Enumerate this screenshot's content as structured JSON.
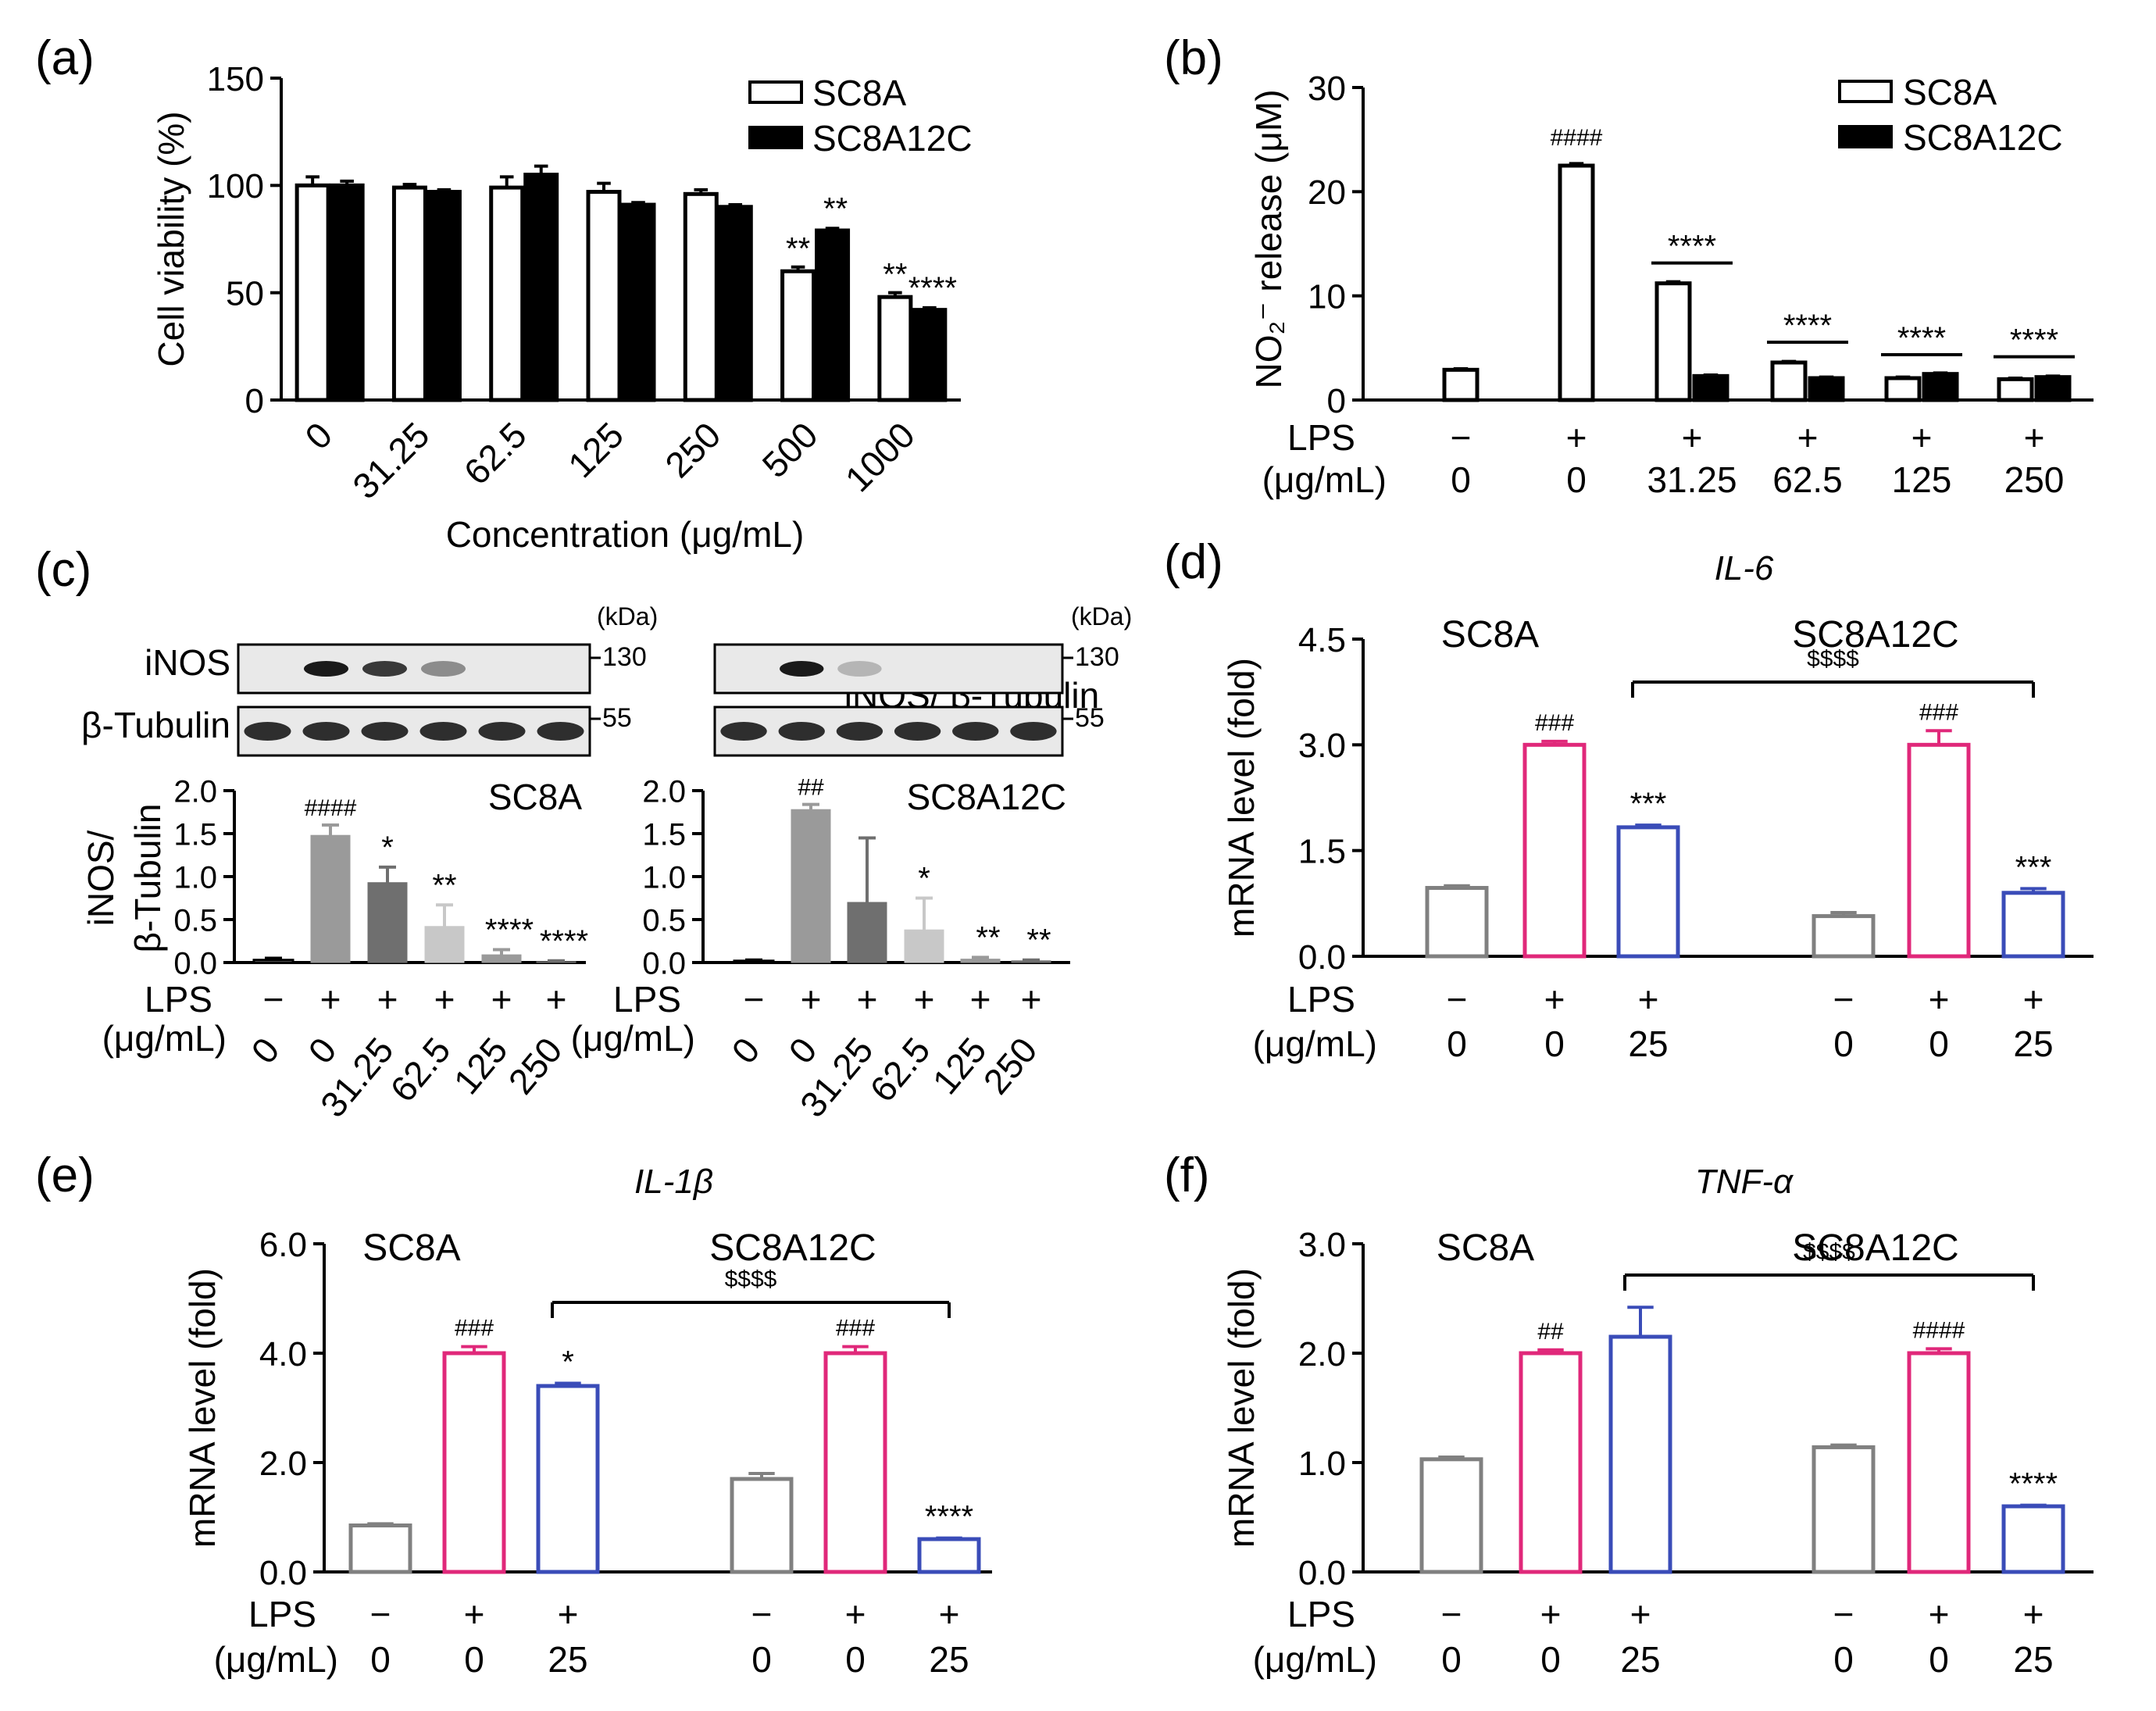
{
  "palette": {
    "black": "#000000",
    "grey_bar": "#808080",
    "magenta_bar": "#e0287a",
    "blue_bar": "#3a4cb8",
    "blot_band_dark": "#1a1a1a",
    "blot_background": "#e9e9e9",
    "wb_bar_1": "#9a9a9a",
    "wb_bar_2": "#6f6f6f",
    "wb_bar_3": "#c8c8c8"
  },
  "chart_data": [
    {
      "panel": "(a)",
      "type": "bar",
      "ylabel": "Cell viability (%)",
      "xlabel": "Concentration (μg/mL)",
      "ylim": [
        0,
        150
      ],
      "yticks": [
        "0",
        "50",
        "100",
        "150"
      ],
      "categories": [
        "0",
        "31.25",
        "62.5",
        "125",
        "250",
        "500",
        "1000"
      ],
      "series": [
        {
          "name": "SC8A",
          "fill": "white",
          "values": [
            100,
            99,
            99,
            97,
            96,
            60,
            48
          ],
          "errors": [
            4,
            1.5,
            5,
            4,
            2,
            2,
            2
          ],
          "sig": [
            "",
            "",
            "",
            "",
            "",
            "**",
            "**"
          ]
        },
        {
          "name": "SC8A12C",
          "fill": "black",
          "values": [
            100,
            97,
            105,
            91,
            90,
            79,
            42
          ],
          "errors": [
            2,
            1,
            4,
            1,
            1,
            1,
            1
          ],
          "sig": [
            "",
            "",
            "",
            "",
            "",
            "**",
            "****"
          ]
        }
      ]
    },
    {
      "panel": "(b)",
      "type": "bar",
      "ylabel": "NO₂⁻ release (μM)",
      "ylim": [
        0,
        30
      ],
      "yticks": [
        "0",
        "10",
        "20",
        "30"
      ],
      "row_labels": [
        "LPS",
        "(μg/mL)"
      ],
      "lps": [
        "−",
        "+",
        "+",
        "+",
        "+",
        "+"
      ],
      "conc": [
        "0",
        "0",
        "31.25",
        "62.5",
        "125",
        "250"
      ],
      "series": [
        {
          "name": "SC8A",
          "fill": "white",
          "values": [
            2.9,
            22.5,
            11.2,
            3.6,
            2.1,
            2.0
          ],
          "errors": [
            0.1,
            0.2,
            0.15,
            0.1,
            0.1,
            0.1
          ]
        },
        {
          "name": "SC8A12C",
          "fill": "black",
          "values": [
            null,
            null,
            2.3,
            2.1,
            2.5,
            2.2
          ],
          "errors": [
            0,
            0,
            0.1,
            0.1,
            0.1,
            0.1
          ]
        }
      ],
      "annotations": [
        "####",
        "****",
        "****",
        "****",
        "****"
      ]
    },
    {
      "panel": "(c)",
      "type": "bar",
      "ylabel": "iNOS/ β-Tubulin",
      "ylim": [
        0,
        2.0
      ],
      "yticks": [
        "0.0",
        "0.5",
        "1.0",
        "1.5",
        "2.0"
      ],
      "row_labels": [
        "LPS",
        "(μg/mL)"
      ],
      "lps": [
        "−",
        "+",
        "+",
        "+",
        "+",
        "+"
      ],
      "conc": [
        "0",
        "0",
        "31.25",
        "62.5",
        "125",
        "250"
      ],
      "blot": {
        "labels": [
          "iNOS",
          "β-Tubulin"
        ],
        "kda_label": "(kDa)",
        "markers": [
          "130",
          "55"
        ]
      },
      "subpanels": [
        {
          "name": "SC8A",
          "values": [
            0.03,
            1.48,
            0.93,
            0.42,
            0.09,
            0.01
          ],
          "errors": [
            0.02,
            0.12,
            0.18,
            0.25,
            0.06,
            0.01
          ],
          "sig": [
            "",
            "####",
            "*",
            "**",
            "****",
            "****"
          ]
        },
        {
          "name": "SC8A12C",
          "values": [
            0.02,
            1.78,
            0.7,
            0.38,
            0.04,
            0.02
          ],
          "errors": [
            0.01,
            0.06,
            0.75,
            0.37,
            0.02,
            0.01
          ],
          "sig": [
            "",
            "##",
            "",
            "*",
            "**",
            "**"
          ]
        }
      ]
    },
    {
      "panel": "(d)",
      "type": "bar",
      "title": "IL-6",
      "ylabel": "mRNA level (fold)",
      "ylim": [
        0,
        4.5
      ],
      "yticks": [
        "0.0",
        "1.5",
        "3.0",
        "4.5"
      ],
      "row_labels": [
        "LPS",
        "(μg/mL)"
      ],
      "groups": [
        {
          "name": "SC8A",
          "lps": [
            "−",
            "+",
            "+"
          ],
          "conc": [
            "0",
            "0",
            "25"
          ],
          "values": [
            0.97,
            3.0,
            1.83
          ],
          "errors": [
            0.03,
            0.05,
            0.03
          ],
          "sig": [
            "",
            "###",
            "***"
          ]
        },
        {
          "name": "SC8A12C",
          "lps": [
            "−",
            "+",
            "+"
          ],
          "conc": [
            "0",
            "0",
            "25"
          ],
          "values": [
            0.57,
            3.0,
            0.9
          ],
          "errors": [
            0.05,
            0.2,
            0.06
          ],
          "sig": [
            "",
            "###",
            "***"
          ]
        }
      ],
      "bracket": "$$$$"
    },
    {
      "panel": "(e)",
      "type": "bar",
      "title": "IL-1β",
      "ylabel": "mRNA level (fold)",
      "ylim": [
        0,
        6.0
      ],
      "yticks": [
        "0.0",
        "2.0",
        "4.0",
        "6.0"
      ],
      "row_labels": [
        "LPS",
        "(μg/mL)"
      ],
      "groups": [
        {
          "name": "SC8A",
          "lps": [
            "−",
            "+",
            "+"
          ],
          "conc": [
            "0",
            "0",
            "25"
          ],
          "values": [
            0.85,
            4.0,
            3.4
          ],
          "errors": [
            0.03,
            0.12,
            0.05
          ],
          "sig": [
            "",
            "###",
            "*"
          ]
        },
        {
          "name": "SC8A12C",
          "lps": [
            "−",
            "+",
            "+"
          ],
          "conc": [
            "0",
            "0",
            "25"
          ],
          "values": [
            1.7,
            4.0,
            0.6
          ],
          "errors": [
            0.1,
            0.12,
            0.02
          ],
          "sig": [
            "",
            "###",
            "****"
          ]
        }
      ],
      "bracket": "$$$$"
    },
    {
      "panel": "(f)",
      "type": "bar",
      "title": "TNF-α",
      "ylabel": "mRNA level (fold)",
      "ylim": [
        0,
        3.0
      ],
      "yticks": [
        "0.0",
        "1.0",
        "2.0",
        "3.0"
      ],
      "row_labels": [
        "LPS",
        "(μg/mL)"
      ],
      "groups": [
        {
          "name": "SC8A",
          "lps": [
            "−",
            "+",
            "+"
          ],
          "conc": [
            "0",
            "0",
            "25"
          ],
          "values": [
            1.03,
            2.0,
            2.15
          ],
          "errors": [
            0.02,
            0.03,
            0.27
          ],
          "sig": [
            "",
            "##",
            ""
          ]
        },
        {
          "name": "SC8A12C",
          "lps": [
            "−",
            "+",
            "+"
          ],
          "conc": [
            "0",
            "0",
            "25"
          ],
          "values": [
            1.14,
            2.0,
            0.6
          ],
          "errors": [
            0.02,
            0.04,
            0.01
          ],
          "sig": [
            "",
            "####",
            "****"
          ]
        }
      ],
      "bracket": "$$$$"
    }
  ]
}
